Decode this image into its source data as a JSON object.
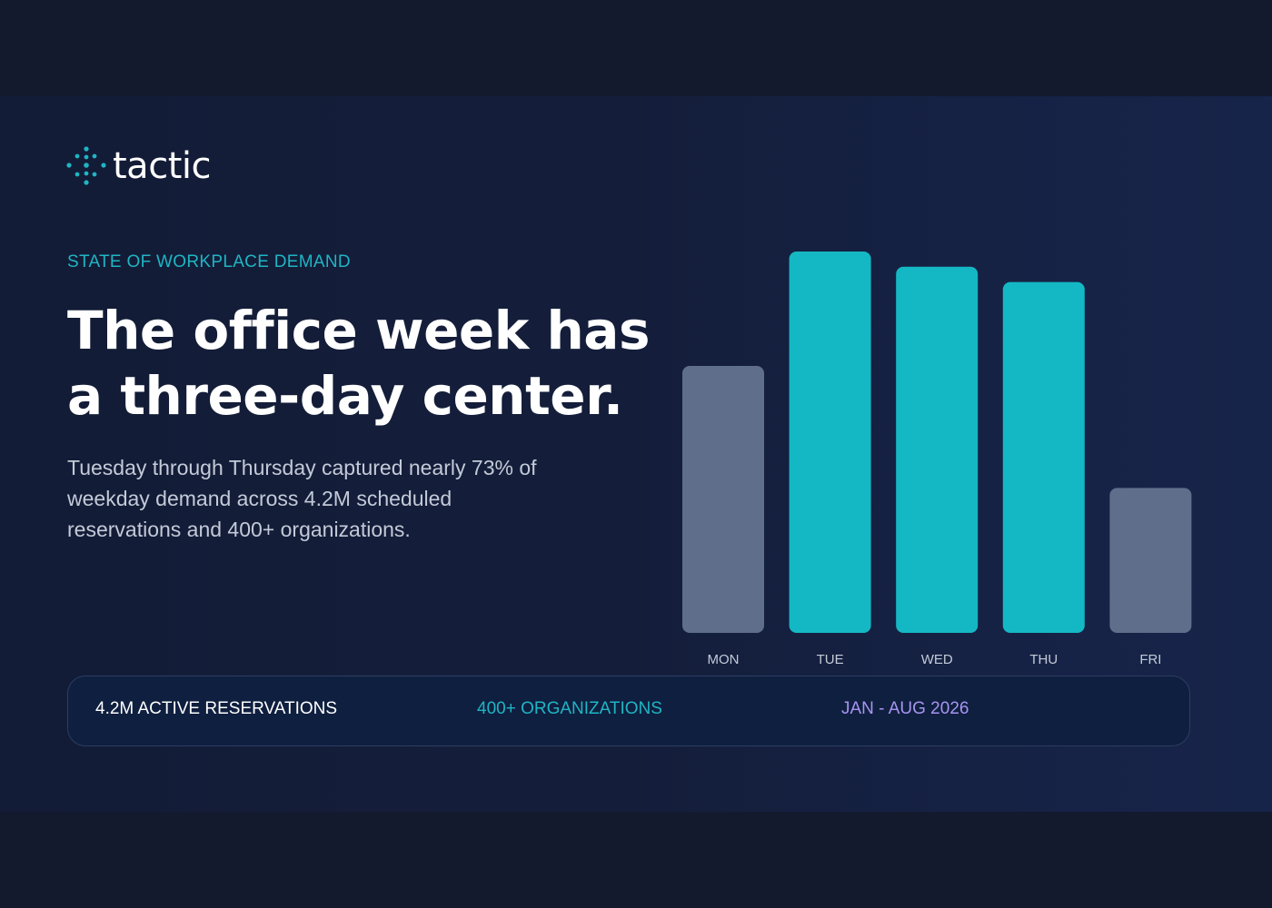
{
  "brand": {
    "name": "tactic",
    "mark_icon": "dotted-diamond-logo-icon",
    "accent_color": "#1fb5c4"
  },
  "eyebrow": "STATE OF WORKPLACE DEMAND",
  "headline": {
    "line1": "The office week has",
    "line2": "a three-day center."
  },
  "body": {
    "line1": "Tuesday through Thursday captured nearly 73% of",
    "line2": "weekday demand across 4.2M scheduled",
    "line3": "reservations and 400+ organizations."
  },
  "stats": [
    {
      "label": "4.2M ACTIVE RESERVATIONS",
      "color": "#ffffff"
    },
    {
      "label": "400+ ORGANIZATIONS",
      "color": "#1fb5c4"
    },
    {
      "label": "JAN - AUG 2026",
      "color": "#a794f0"
    }
  ],
  "chart_data": {
    "type": "bar",
    "title": "",
    "xlabel": "",
    "ylabel": "",
    "categories": [
      "MON",
      "TUE",
      "WED",
      "THU",
      "FRI"
    ],
    "values": [
      70,
      100,
      96,
      92,
      38
    ],
    "highlight": [
      false,
      true,
      true,
      true,
      false
    ],
    "colors": {
      "highlight": "#14b8c4",
      "base": "#5f6e8b",
      "label": "#c3cad8"
    },
    "ylim": [
      0,
      100
    ],
    "grid": false,
    "legend": "none"
  }
}
